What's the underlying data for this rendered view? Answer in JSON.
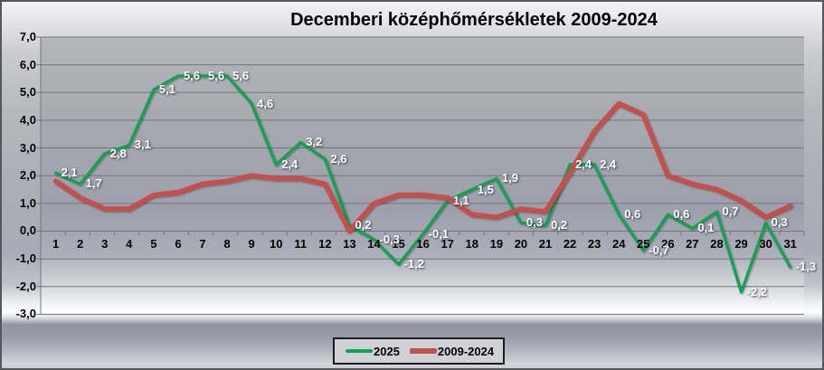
{
  "chart_data": {
    "type": "line",
    "title": "Decemberi középhőmérsékletek 2009-2024",
    "x_axis_label": "",
    "y_axis_label": "",
    "x_labels": [
      "1",
      "2",
      "3",
      "4",
      "5",
      "6",
      "7",
      "8",
      "9",
      "10",
      "11",
      "12",
      "13",
      "14",
      "15",
      "16",
      "17",
      "18",
      "19",
      "20",
      "21",
      "22",
      "23",
      "24",
      "25",
      "26",
      "27",
      "28",
      "29",
      "30",
      "31"
    ],
    "ylim": [
      -3,
      7
    ],
    "ytick_step": 1,
    "ytick_labels": [
      "7,0",
      "6,0",
      "5,0",
      "4,0",
      "3,0",
      "2,0",
      "1,0",
      "0,0",
      "-1,0",
      "-2,0",
      "-3,0"
    ],
    "grid": true,
    "legend_position": "bottom-center",
    "series": [
      {
        "name": "2025",
        "color": "#12a351",
        "line_width": 3.2,
        "values": [
          2.1,
          1.7,
          2.8,
          3.1,
          5.1,
          5.6,
          5.6,
          5.6,
          4.6,
          2.4,
          3.2,
          2.6,
          0.2,
          -0.3,
          -1.2,
          -0.1,
          1.1,
          1.5,
          1.9,
          0.3,
          0.2,
          2.4,
          2.4,
          0.6,
          -0.7,
          0.6,
          0.1,
          0.7,
          -2.2,
          0.3,
          -1.3
        ],
        "data_labels": [
          "2,1",
          "1,7",
          "2,8",
          "3,1",
          "5,1",
          "5,6",
          "5,6",
          "5,6",
          "4,6",
          "2,4",
          "3,2",
          "2,6",
          "0,2",
          "-0,3",
          "-1,2",
          "-0,1",
          "1,1",
          "1,5",
          "1,9",
          "0,3",
          "0,2",
          "2,4",
          "2,4",
          "0,6",
          "-0,7",
          "0,6",
          "0,1",
          "0,7",
          "-2,2",
          "0,3",
          "-1,3"
        ],
        "data_label_color": "#ffffff"
      },
      {
        "name": "2009-2024",
        "color": "#c5504b",
        "line_width": 5.5,
        "values": [
          1.8,
          1.2,
          0.8,
          0.8,
          1.3,
          1.4,
          1.7,
          1.8,
          2.0,
          1.9,
          1.9,
          1.7,
          0.0,
          1.0,
          1.3,
          1.3,
          1.2,
          0.6,
          0.5,
          0.8,
          0.7,
          2.1,
          3.6,
          4.6,
          4.2,
          2.0,
          1.7,
          1.5,
          1.1,
          0.5,
          0.9
        ],
        "data_labels": null
      }
    ]
  }
}
